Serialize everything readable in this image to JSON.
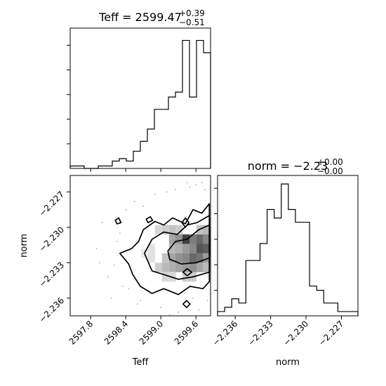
{
  "chart_data": [
    {
      "panel": "teff-histogram",
      "type": "bar",
      "title": {
        "prefix": "Teff = 2599.47",
        "sup": "+0.39",
        "sub": "−0.51"
      },
      "xlim": [
        2597.45,
        2599.85
      ],
      "bins": [
        {
          "x0": 2597.45,
          "x1": 2597.57,
          "count": 1
        },
        {
          "x0": 2597.57,
          "x1": 2597.69,
          "count": 1
        },
        {
          "x0": 2597.69,
          "x1": 2597.81,
          "count": 0
        },
        {
          "x0": 2597.81,
          "x1": 2597.93,
          "count": 0
        },
        {
          "x0": 2597.93,
          "x1": 2598.05,
          "count": 1
        },
        {
          "x0": 2598.05,
          "x1": 2598.17,
          "count": 1
        },
        {
          "x0": 2598.17,
          "x1": 2598.29,
          "count": 3
        },
        {
          "x0": 2598.29,
          "x1": 2598.41,
          "count": 4
        },
        {
          "x0": 2598.41,
          "x1": 2598.53,
          "count": 3
        },
        {
          "x0": 2598.53,
          "x1": 2598.65,
          "count": 7
        },
        {
          "x0": 2598.65,
          "x1": 2598.77,
          "count": 11
        },
        {
          "x0": 2598.77,
          "x1": 2598.89,
          "count": 16
        },
        {
          "x0": 2598.89,
          "x1": 2599.01,
          "count": 24
        },
        {
          "x0": 2599.01,
          "x1": 2599.13,
          "count": 24
        },
        {
          "x0": 2599.13,
          "x1": 2599.25,
          "count": 29
        },
        {
          "x0": 2599.25,
          "x1": 2599.37,
          "count": 31
        },
        {
          "x0": 2599.37,
          "x1": 2599.49,
          "count": 52
        },
        {
          "x0": 2599.49,
          "x1": 2599.61,
          "count": 29
        },
        {
          "x0": 2599.61,
          "x1": 2599.73,
          "count": 52
        },
        {
          "x0": 2599.73,
          "x1": 2599.85,
          "count": 47
        }
      ],
      "ymax": 57
    },
    {
      "panel": "norm-histogram",
      "type": "bar",
      "title": {
        "prefix": "norm = −2.23",
        "sup": "+0.00",
        "sub": "−0.00"
      },
      "xlim": [
        -2.2375,
        -2.2256
      ],
      "bins": [
        {
          "x0": -2.2375,
          "x1": -2.2369,
          "count": 1
        },
        {
          "x0": -2.2369,
          "x1": -2.2363,
          "count": 2
        },
        {
          "x0": -2.2363,
          "x1": -2.2357,
          "count": 4
        },
        {
          "x0": -2.2357,
          "x1": -2.2351,
          "count": 3
        },
        {
          "x0": -2.2351,
          "x1": -2.2345,
          "count": 13
        },
        {
          "x0": -2.2345,
          "x1": -2.2339,
          "count": 13
        },
        {
          "x0": -2.2339,
          "x1": -2.2333,
          "count": 17
        },
        {
          "x0": -2.2333,
          "x1": -2.2327,
          "count": 25
        },
        {
          "x0": -2.2327,
          "x1": -2.2321,
          "count": 23
        },
        {
          "x0": -2.2321,
          "x1": -2.2315,
          "count": 31
        },
        {
          "x0": -2.2315,
          "x1": -2.2309,
          "count": 25
        },
        {
          "x0": -2.2309,
          "x1": -2.2303,
          "count": 22
        },
        {
          "x0": -2.2303,
          "x1": -2.2297,
          "count": 22
        },
        {
          "x0": -2.2297,
          "x1": -2.2291,
          "count": 7
        },
        {
          "x0": -2.2291,
          "x1": -2.2285,
          "count": 6
        },
        {
          "x0": -2.2285,
          "x1": -2.2279,
          "count": 3
        },
        {
          "x0": -2.2279,
          "x1": -2.2273,
          "count": 3
        },
        {
          "x0": -2.2273,
          "x1": -2.2267,
          "count": 1
        },
        {
          "x0": -2.2267,
          "x1": -2.2256,
          "count": 1
        }
      ],
      "ymax": 33
    },
    {
      "panel": "teff-norm-2d",
      "type": "heatmap",
      "xlim": [
        2597.45,
        2599.85
      ],
      "ylim": [
        -2.2375,
        -2.2256
      ],
      "xlabel": "Teff",
      "ylabel": "norm",
      "xticks": [
        2597.8,
        2598.4,
        2599.0,
        2599.6
      ],
      "xtick_labels": [
        "2597.8",
        "2598.4",
        "2599.0",
        "2599.6"
      ],
      "yticks": [
        -2.227,
        -2.23,
        -2.233,
        -2.236
      ],
      "ytick_labels": [
        "−2.227",
        "−2.230",
        "−2.233",
        "−2.236"
      ],
      "density_cells": [
        {
          "x": 2599.2,
          "y": -2.231,
          "v": 0.45
        },
        {
          "x": 2599.31,
          "y": -2.231,
          "v": 0.55
        },
        {
          "x": 2599.43,
          "y": -2.231,
          "v": 0.95
        },
        {
          "x": 2599.55,
          "y": -2.231,
          "v": 0.65
        },
        {
          "x": 2599.67,
          "y": -2.231,
          "v": 0.75
        },
        {
          "x": 2599.78,
          "y": -2.231,
          "v": 0.6
        },
        {
          "x": 2599.2,
          "y": -2.2318,
          "v": 0.35
        },
        {
          "x": 2599.31,
          "y": -2.2318,
          "v": 0.4
        },
        {
          "x": 2599.43,
          "y": -2.2318,
          "v": 0.5
        },
        {
          "x": 2599.55,
          "y": -2.2318,
          "v": 0.6
        },
        {
          "x": 2599.67,
          "y": -2.2318,
          "v": 0.85
        },
        {
          "x": 2599.78,
          "y": -2.2318,
          "v": 0.8
        },
        {
          "x": 2599.08,
          "y": -2.2326,
          "v": 0.3
        },
        {
          "x": 2599.2,
          "y": -2.2326,
          "v": 0.45
        },
        {
          "x": 2599.31,
          "y": -2.2326,
          "v": 0.55
        },
        {
          "x": 2599.43,
          "y": -2.2326,
          "v": 0.6
        },
        {
          "x": 2599.55,
          "y": -2.2326,
          "v": 0.75
        },
        {
          "x": 2599.67,
          "y": -2.2326,
          "v": 0.7
        },
        {
          "x": 2599.78,
          "y": -2.2326,
          "v": 0.5
        },
        {
          "x": 2598.96,
          "y": -2.2334,
          "v": 0.25
        },
        {
          "x": 2599.08,
          "y": -2.2334,
          "v": 0.35
        },
        {
          "x": 2599.2,
          "y": -2.2334,
          "v": 0.4
        },
        {
          "x": 2599.31,
          "y": -2.2334,
          "v": 0.45
        },
        {
          "x": 2599.43,
          "y": -2.2334,
          "v": 0.5
        },
        {
          "x": 2599.55,
          "y": -2.2334,
          "v": 0.55
        },
        {
          "x": 2599.67,
          "y": -2.2334,
          "v": 0.45
        },
        {
          "x": 2599.78,
          "y": -2.2334,
          "v": 0.35
        },
        {
          "x": 2598.96,
          "y": -2.2302,
          "v": 0.2
        },
        {
          "x": 2599.08,
          "y": -2.2302,
          "v": 0.25
        },
        {
          "x": 2599.2,
          "y": -2.2302,
          "v": 0.3
        },
        {
          "x": 2599.31,
          "y": -2.2302,
          "v": 0.25
        },
        {
          "x": 2599.67,
          "y": -2.2302,
          "v": 0.3
        },
        {
          "x": 2599.78,
          "y": -2.2302,
          "v": 0.35
        },
        {
          "x": 2598.84,
          "y": -2.2326,
          "v": 0.15
        },
        {
          "x": 2598.84,
          "y": -2.2318,
          "v": 0.15
        },
        {
          "x": 2598.72,
          "y": -2.2322,
          "v": 0.1
        },
        {
          "x": 2599.08,
          "y": -2.2342,
          "v": 0.2
        },
        {
          "x": 2599.2,
          "y": -2.2342,
          "v": 0.2
        },
        {
          "x": 2599.43,
          "y": -2.2342,
          "v": 0.25
        },
        {
          "x": 2599.55,
          "y": -2.2342,
          "v": 0.25
        }
      ],
      "contours": [
        {
          "name": "outer",
          "points": [
            [
              2598.3,
              -2.2322
            ],
            [
              2598.5,
              -2.2318
            ],
            [
              2598.62,
              -2.2312
            ],
            [
              2598.7,
              -2.2302
            ],
            [
              2598.9,
              -2.2295
            ],
            [
              2599.05,
              -2.2298
            ],
            [
              2599.2,
              -2.2292
            ],
            [
              2599.42,
              -2.2297
            ],
            [
              2599.55,
              -2.2285
            ],
            [
              2599.7,
              -2.2288
            ],
            [
              2599.83,
              -2.228
            ],
            [
              2599.83,
              -2.2346
            ],
            [
              2599.72,
              -2.2352
            ],
            [
              2599.5,
              -2.235
            ],
            [
              2599.3,
              -2.2357
            ],
            [
              2599.05,
              -2.2352
            ],
            [
              2598.85,
              -2.2356
            ],
            [
              2598.65,
              -2.235
            ],
            [
              2598.52,
              -2.234
            ],
            [
              2598.45,
              -2.2331
            ],
            [
              2598.3,
              -2.2322
            ]
          ]
        },
        {
          "name": "middle",
          "points": [
            [
              2598.72,
              -2.2322
            ],
            [
              2598.85,
              -2.231
            ],
            [
              2599.05,
              -2.2304
            ],
            [
              2599.28,
              -2.2306
            ],
            [
              2599.45,
              -2.2298
            ],
            [
              2599.62,
              -2.2296
            ],
            [
              2599.83,
              -2.229
            ],
            [
              2599.83,
              -2.2338
            ],
            [
              2599.55,
              -2.2342
            ],
            [
              2599.3,
              -2.2344
            ],
            [
              2599.05,
              -2.234
            ],
            [
              2598.85,
              -2.2337
            ],
            [
              2598.72,
              -2.2322
            ]
          ]
        },
        {
          "name": "inner",
          "points": [
            [
              2599.12,
              -2.232
            ],
            [
              2599.25,
              -2.2312
            ],
            [
              2599.45,
              -2.231
            ],
            [
              2599.65,
              -2.2302
            ],
            [
              2599.83,
              -2.2298
            ],
            [
              2599.83,
              -2.2326
            ],
            [
              2599.6,
              -2.233
            ],
            [
              2599.35,
              -2.2331
            ],
            [
              2599.15,
              -2.2327
            ],
            [
              2599.12,
              -2.232
            ]
          ]
        },
        {
          "name": "spot-a",
          "points": [
            [
              2599.36,
              -2.2296
            ],
            [
              2599.42,
              -2.2292
            ],
            [
              2599.48,
              -2.2296
            ],
            [
              2599.42,
              -2.23
            ],
            [
              2599.36,
              -2.2296
            ]
          ]
        },
        {
          "name": "spot-b",
          "points": [
            [
              2599.38,
              -2.2338
            ],
            [
              2599.45,
              -2.2335
            ],
            [
              2599.53,
              -2.2338
            ],
            [
              2599.45,
              -2.2341
            ],
            [
              2599.38,
              -2.2338
            ]
          ]
        },
        {
          "name": "spot-c",
          "points": [
            [
              2598.75,
              -2.2293
            ],
            [
              2598.82,
              -2.2291
            ],
            [
              2598.86,
              -2.2294
            ],
            [
              2598.78,
              -2.2296
            ],
            [
              2598.75,
              -2.2293
            ]
          ]
        },
        {
          "name": "spot-d",
          "points": [
            [
              2598.22,
              -2.2294
            ],
            [
              2598.28,
              -2.2292
            ],
            [
              2598.32,
              -2.2296
            ],
            [
              2598.25,
              -2.2297
            ],
            [
              2598.22,
              -2.2294
            ]
          ]
        },
        {
          "name": "spot-e",
          "points": [
            [
              2599.38,
              -2.2365
            ],
            [
              2599.44,
              -2.2362
            ],
            [
              2599.5,
              -2.2365
            ],
            [
              2599.44,
              -2.2368
            ],
            [
              2599.38,
              -2.2365
            ]
          ]
        }
      ],
      "scatter": [
        {
          "x": 2597.9,
          "y": -2.2318
        },
        {
          "x": 2598.0,
          "y": -2.2296
        },
        {
          "x": 2598.1,
          "y": -2.2342
        },
        {
          "x": 2598.2,
          "y": -2.2332
        },
        {
          "x": 2598.15,
          "y": -2.236
        },
        {
          "x": 2598.35,
          "y": -2.235
        },
        {
          "x": 2598.4,
          "y": -2.2285
        },
        {
          "x": 2598.55,
          "y": -2.2278
        },
        {
          "x": 2598.6,
          "y": -2.2365
        },
        {
          "x": 2598.9,
          "y": -2.2272
        },
        {
          "x": 2599.0,
          "y": -2.2368
        },
        {
          "x": 2599.1,
          "y": -2.227
        },
        {
          "x": 2599.25,
          "y": -2.2268
        },
        {
          "x": 2599.3,
          "y": -2.2372
        },
        {
          "x": 2599.5,
          "y": -2.2266
        },
        {
          "x": 2599.6,
          "y": -2.2264
        },
        {
          "x": 2599.65,
          "y": -2.237
        },
        {
          "x": 2599.75,
          "y": -2.2268
        },
        {
          "x": 2599.8,
          "y": -2.2362
        },
        {
          "x": 2598.3,
          "y": -2.2305
        },
        {
          "x": 2597.95,
          "y": -2.233
        },
        {
          "x": 2599.7,
          "y": -2.2262
        },
        {
          "x": 2599.55,
          "y": -2.236
        },
        {
          "x": 2598.7,
          "y": -2.2282
        },
        {
          "x": 2598.65,
          "y": -2.2362
        },
        {
          "x": 2599.15,
          "y": -2.2374
        },
        {
          "x": 2599.45,
          "y": -2.2262
        },
        {
          "x": 2598.45,
          "y": -2.2352
        },
        {
          "x": 2598.25,
          "y": -2.2312
        },
        {
          "x": 2599.82,
          "y": -2.23
        }
      ]
    }
  ]
}
